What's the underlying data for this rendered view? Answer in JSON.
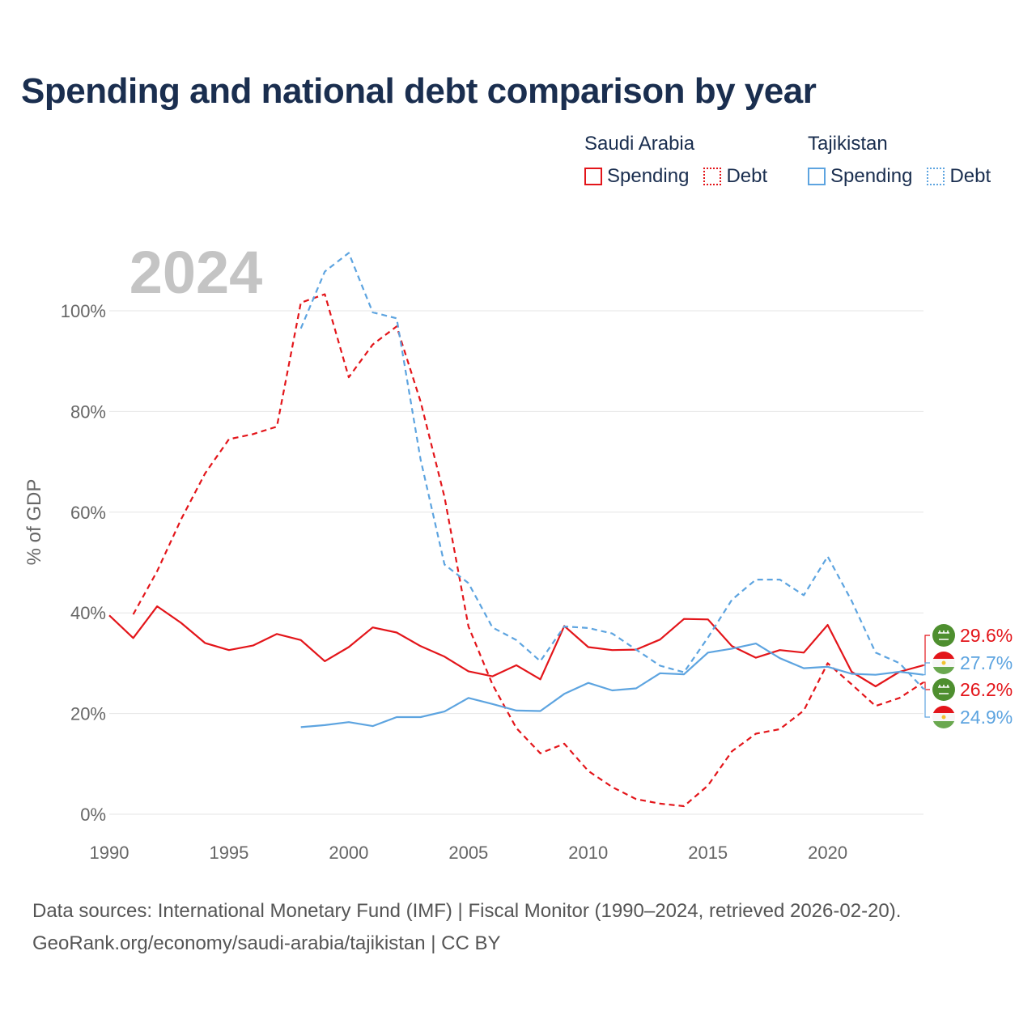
{
  "title": "Spending and national debt comparison by year",
  "legend": {
    "groups": [
      {
        "name": "Saudi Arabia",
        "items": [
          "Spending",
          "Debt"
        ]
      },
      {
        "name": "Tajikistan",
        "items": [
          "Spending",
          "Debt"
        ]
      }
    ]
  },
  "colors": {
    "saudi_arabia": "#e3151a",
    "tajikistan": "#5da4e0"
  },
  "source": {
    "line1": "Data sources: International Monetary Fund (IMF) | Fiscal Monitor (1990–2024, retrieved 2026-02-20).",
    "line2": "GeoRank.org/economy/saudi-arabia/tajikistan | CC BY"
  },
  "chart_data": {
    "type": "line",
    "year_label": "2024",
    "ylabel": "% of GDP",
    "xlim": [
      1990,
      2024
    ],
    "ylim": [
      0,
      100
    ],
    "x_ticks": [
      1990,
      1995,
      2000,
      2005,
      2010,
      2015,
      2020
    ],
    "y_ticks": [
      0,
      20,
      40,
      60,
      80,
      100
    ],
    "y_tick_labels": [
      "0%",
      "20%",
      "40%",
      "60%",
      "80%",
      "100%"
    ],
    "grid": true,
    "series": [
      {
        "name": "Saudi Arabia Spending",
        "country": "Saudi Arabia",
        "metric": "Spending",
        "color": "#e3151a",
        "dash": "solid",
        "x": [
          1990,
          1991,
          1992,
          1993,
          1994,
          1995,
          1996,
          1997,
          1998,
          1999,
          2000,
          2001,
          2002,
          2003,
          2004,
          2005,
          2006,
          2007,
          2008,
          2009,
          2010,
          2011,
          2012,
          2013,
          2014,
          2015,
          2016,
          2017,
          2018,
          2019,
          2020,
          2021,
          2022,
          2023,
          2024
        ],
        "values": [
          39.5,
          35,
          41.3,
          38,
          34,
          32.6,
          33.5,
          35.8,
          34.6,
          30.4,
          33.2,
          37.1,
          36.1,
          33.4,
          31.3,
          28.4,
          27.4,
          29.6,
          26.8,
          37.4,
          33.2,
          32.6,
          32.7,
          34.7,
          38.8,
          38.7,
          33.4,
          31.1,
          32.6,
          32.1,
          37.6,
          28.3,
          25.4,
          28.3,
          29.6
        ]
      },
      {
        "name": "Saudi Arabia Debt",
        "country": "Saudi Arabia",
        "metric": "Debt",
        "color": "#e3151a",
        "dash": "dashed",
        "x": [
          1991,
          1992,
          1993,
          1994,
          1995,
          1996,
          1997,
          1998,
          1999,
          2000,
          2001,
          2002,
          2003,
          2004,
          2005,
          2006,
          2007,
          2008,
          2009,
          2010,
          2011,
          2012,
          2013,
          2014,
          2015,
          2016,
          2017,
          2018,
          2019,
          2020,
          2021,
          2022,
          2023,
          2024
        ],
        "values": [
          39.7,
          48.3,
          58.6,
          67.7,
          74.5,
          75.5,
          77,
          101.6,
          103.3,
          86.8,
          93.3,
          96.9,
          82,
          63,
          37.3,
          25.8,
          17.1,
          12.1,
          14,
          8.6,
          5.4,
          3,
          2.1,
          1.6,
          5.7,
          12.5,
          16,
          16.9,
          20.6,
          30,
          25.8,
          21.5,
          23.1,
          26.2
        ]
      },
      {
        "name": "Tajikistan Spending",
        "country": "Tajikistan",
        "metric": "Spending",
        "color": "#5da4e0",
        "dash": "solid",
        "x": [
          1998,
          1999,
          2000,
          2001,
          2002,
          2003,
          2004,
          2005,
          2006,
          2007,
          2008,
          2009,
          2010,
          2011,
          2012,
          2013,
          2014,
          2015,
          2016,
          2017,
          2018,
          2019,
          2020,
          2021,
          2022,
          2023,
          2024
        ],
        "values": [
          17.3,
          17.7,
          18.3,
          17.5,
          19.3,
          19.3,
          20.4,
          23.1,
          21.9,
          20.6,
          20.5,
          23.9,
          26.1,
          24.6,
          25,
          28,
          27.8,
          32.1,
          32.9,
          33.9,
          31,
          29,
          29.3,
          27.9,
          27.7,
          28.3,
          27.7
        ]
      },
      {
        "name": "Tajikistan Debt",
        "country": "Tajikistan",
        "metric": "Debt",
        "color": "#5da4e0",
        "dash": "dashed",
        "x": [
          1998,
          1999,
          2000,
          2001,
          2002,
          2003,
          2004,
          2005,
          2006,
          2007,
          2008,
          2009,
          2010,
          2011,
          2012,
          2013,
          2014,
          2015,
          2016,
          2017,
          2018,
          2019,
          2020,
          2021,
          2022,
          2023,
          2024
        ],
        "values": [
          96.5,
          107.8,
          111.5,
          99.7,
          98.5,
          70.5,
          49.6,
          45.9,
          37.1,
          34.6,
          30.4,
          37.3,
          37,
          35.9,
          32.7,
          29.5,
          28.2,
          35.1,
          42.6,
          46.6,
          46.6,
          43.5,
          51.2,
          42.4,
          32.1,
          30,
          24.9
        ]
      }
    ],
    "end_labels": [
      {
        "text": "29.6%",
        "country": "Saudi Arabia",
        "flag": "saudi-flag-icon",
        "value": 29.6
      },
      {
        "text": "27.7%",
        "country": "Tajikistan",
        "flag": "tajikistan-flag-icon",
        "value": 27.7
      },
      {
        "text": "26.2%",
        "country": "Saudi Arabia",
        "flag": "saudi-flag-icon",
        "value": 26.2
      },
      {
        "text": "24.9%",
        "country": "Tajikistan",
        "flag": "tajikistan-flag-icon",
        "value": 24.9
      }
    ]
  }
}
